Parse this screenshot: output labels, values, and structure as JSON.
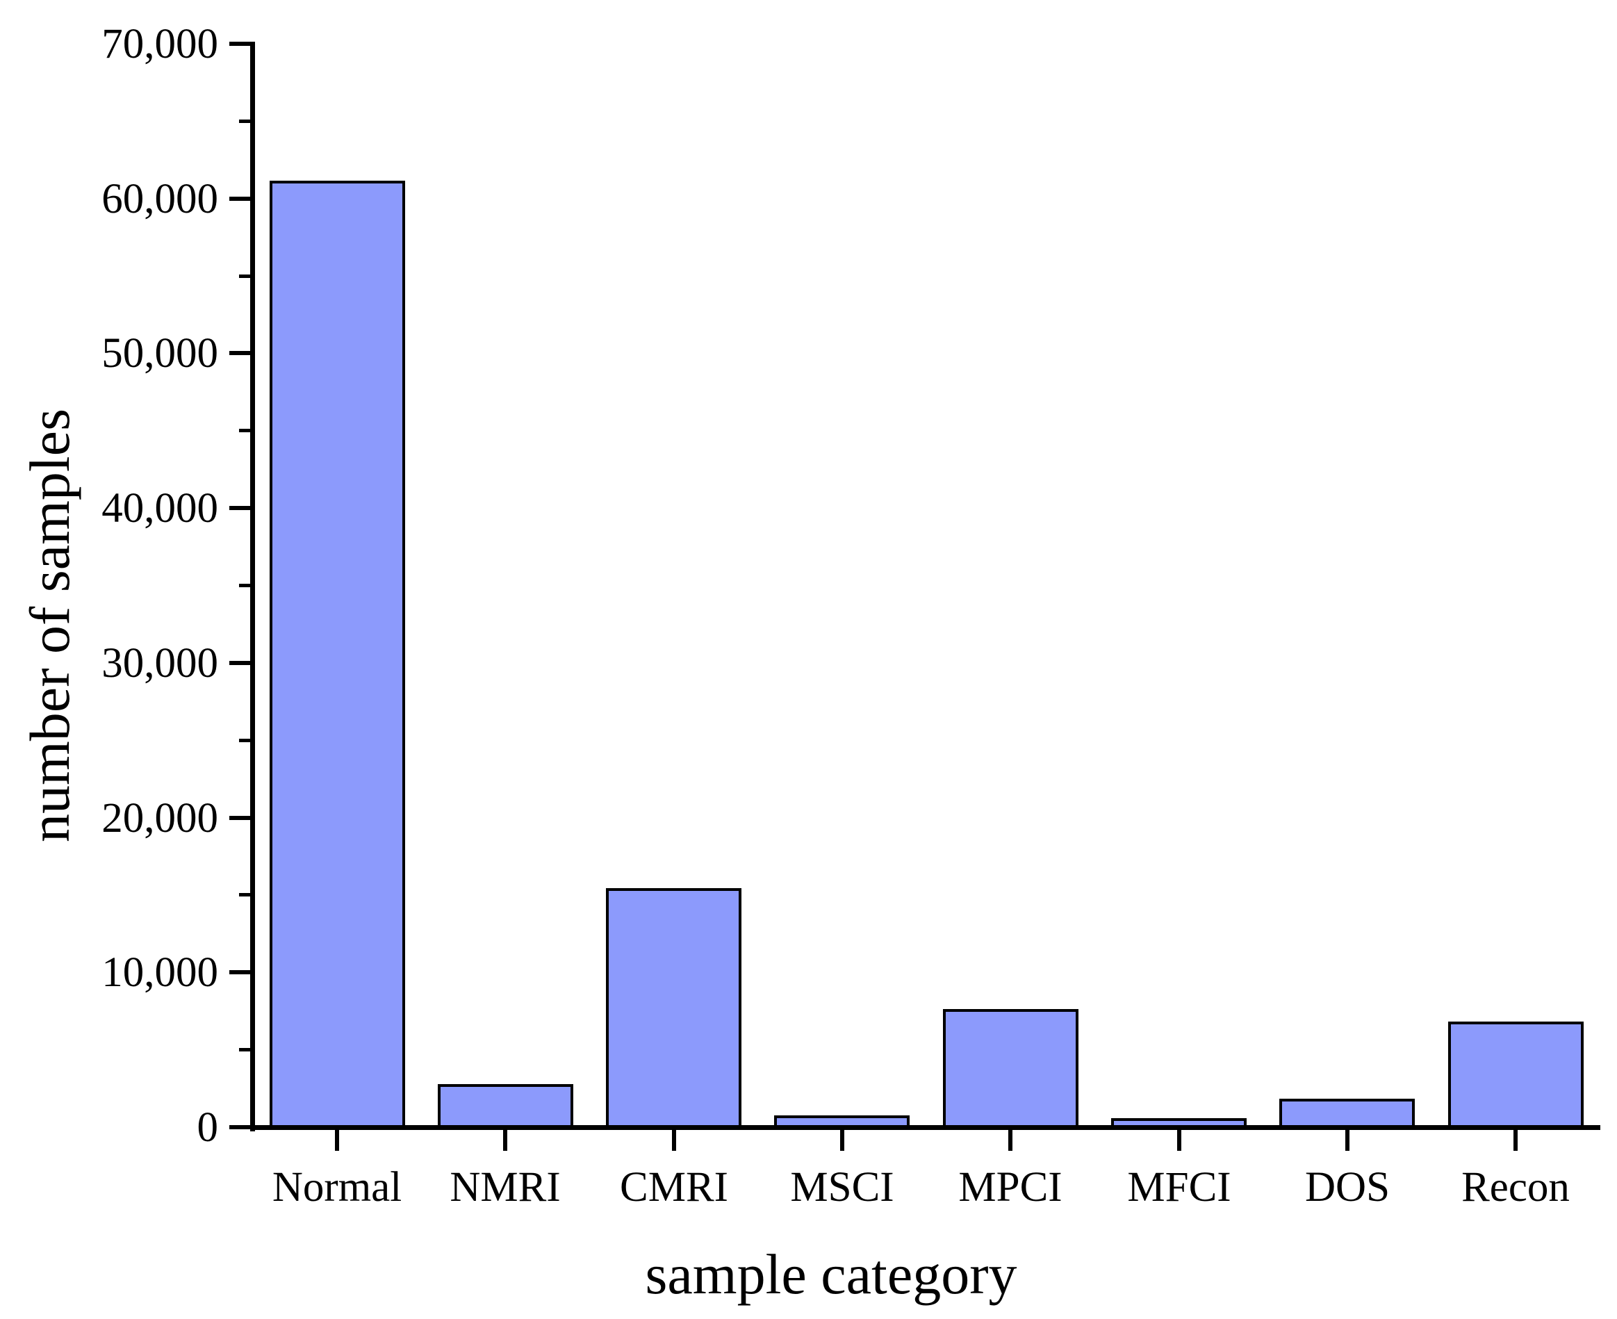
{
  "chart_data": {
    "type": "bar",
    "title": "",
    "xlabel": "sample category",
    "ylabel": "number of samples",
    "categories": [
      "Normal",
      "NMRI",
      "CMRI",
      "MSCI",
      "MPCI",
      "MFCI",
      "DOS",
      "Recon"
    ],
    "values": [
      61156,
      2763,
      15466,
      782,
      7637,
      573,
      1837,
      6805
    ],
    "ylim": [
      0,
      70000
    ],
    "ytick_step": 10000,
    "ytick_labels": [
      "0",
      "10,000",
      "20,000",
      "30,000",
      "40,000",
      "50,000",
      "60,000",
      "70,000"
    ],
    "yminor_tick_step": 5000,
    "grid": "off",
    "legend": "none",
    "bar_fill_color": "#8c9afc",
    "bar_border_color": "#000000",
    "axis_color": "#000000",
    "background_color": "#ffffff"
  }
}
